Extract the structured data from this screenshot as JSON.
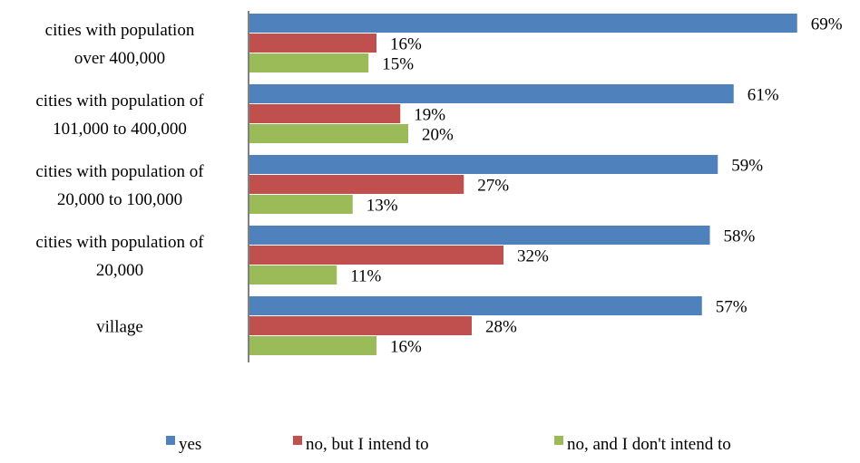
{
  "chart_data": {
    "type": "bar",
    "orientation": "horizontal",
    "categories": [
      [
        "cities with population",
        "over 400,000"
      ],
      [
        "cities with population of",
        "101,000 to 400,000"
      ],
      [
        "cities with population of",
        "20,000 to 100,000"
      ],
      [
        "cities with population of",
        "20,000"
      ],
      [
        "village"
      ]
    ],
    "series": [
      {
        "name": "yes",
        "color": "#4f81bd",
        "values": [
          69,
          61,
          59,
          58,
          57
        ],
        "labels": [
          "69%",
          "61%",
          "59%",
          "58%",
          "57%"
        ]
      },
      {
        "name": "no, but I intend to",
        "color": "#c0504d",
        "values": [
          16,
          19,
          27,
          32,
          28
        ],
        "labels": [
          "16%",
          "19%",
          "27%",
          "32%",
          "28%"
        ]
      },
      {
        "name": "no, and I don't intend to",
        "color": "#9bbb59",
        "values": [
          15,
          20,
          13,
          11,
          16
        ],
        "labels": [
          "15%",
          "20%",
          "13%",
          "11%",
          "16%"
        ]
      }
    ],
    "value_unit": "%",
    "xlim": [
      0,
      70
    ],
    "grid": false,
    "legend_position": "bottom"
  }
}
